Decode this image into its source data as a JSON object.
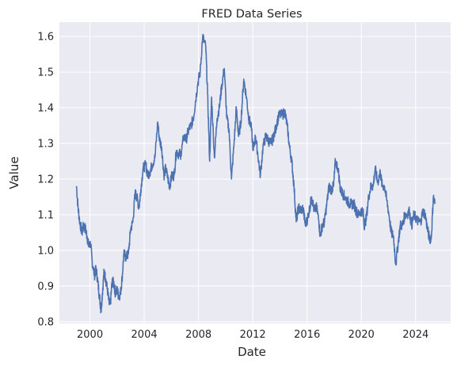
{
  "chart_data": {
    "type": "line",
    "title": "FRED Data Series",
    "xlabel": "Date",
    "ylabel": "Value",
    "grid": true,
    "background": "#EAEAF2",
    "grid_color": "#FFFFFF",
    "line_color": "#4C72B0",
    "xlim": [
      "1997-10-01",
      "2026-08-01"
    ],
    "ylim": [
      0.795,
      1.64
    ],
    "x_ticks": [
      "2000",
      "2004",
      "2008",
      "2012",
      "2016",
      "2020",
      "2024"
    ],
    "y_ticks": [
      "0.8",
      "0.9",
      "1.0",
      "1.1",
      "1.2",
      "1.3",
      "1.4",
      "1.5",
      "1.6"
    ],
    "series": [
      {
        "x": [
          "1999-01-04",
          "1999-02-15",
          "1999-04-01",
          "1999-06-01",
          "1999-07-15",
          "1999-09-01",
          "1999-10-15",
          "1999-12-01",
          "2000-01-15",
          "2000-03-01",
          "2000-05-01",
          "2000-06-15",
          "2000-08-01",
          "2000-09-15",
          "2000-10-26",
          "2000-12-01",
          "2001-01-15",
          "2001-03-01",
          "2001-04-15",
          "2001-06-01",
          "2001-07-06",
          "2001-08-15",
          "2001-10-01",
          "2001-11-15",
          "2002-01-01",
          "2002-02-15",
          "2002-04-01",
          "2002-05-15",
          "2002-07-01",
          "2002-09-01",
          "2002-11-01",
          "2003-01-01",
          "2003-03-01",
          "2003-05-01",
          "2003-06-15",
          "2003-08-15",
          "2003-10-01",
          "2003-12-01",
          "2004-02-15",
          "2004-04-01",
          "2004-06-01",
          "2004-08-01",
          "2004-10-15",
          "2004-12-30",
          "2005-02-15",
          "2005-04-15",
          "2005-06-15",
          "2005-08-01",
          "2005-10-01",
          "2005-11-15",
          "2006-01-15",
          "2006-03-15",
          "2006-05-15",
          "2006-07-15",
          "2006-09-15",
          "2006-12-01",
          "2007-02-01",
          "2007-04-15",
          "2007-06-15",
          "2007-08-15",
          "2007-10-15",
          "2007-12-15",
          "2008-02-15",
          "2008-04-22",
          "2008-07-15",
          "2008-09-01",
          "2008-10-27",
          "2008-12-18",
          "2009-03-04",
          "2009-05-15",
          "2009-07-15",
          "2009-09-15",
          "2009-11-25",
          "2010-02-01",
          "2010-04-01",
          "2010-06-07",
          "2010-08-15",
          "2010-10-15",
          "2010-12-15",
          "2011-02-15",
          "2011-05-03",
          "2011-07-15",
          "2011-09-15",
          "2011-11-15",
          "2012-01-15",
          "2012-03-15",
          "2012-05-15",
          "2012-07-24",
          "2012-10-01",
          "2012-12-15",
          "2013-02-15",
          "2013-04-15",
          "2013-06-15",
          "2013-08-15",
          "2013-10-15",
          "2013-12-15",
          "2014-03-15",
          "2014-05-08",
          "2014-07-15",
          "2014-09-15",
          "2014-11-15",
          "2015-01-15",
          "2015-03-15",
          "2015-05-15",
          "2015-07-15",
          "2015-09-15",
          "2015-11-15",
          "2016-01-15",
          "2016-03-15",
          "2016-05-03",
          "2016-07-15",
          "2016-09-15",
          "2016-11-15",
          "2016-12-20",
          "2017-02-15",
          "2017-04-15",
          "2017-06-15",
          "2017-08-15",
          "2017-10-15",
          "2017-12-15",
          "2018-02-01",
          "2018-04-15",
          "2018-06-15",
          "2018-08-15",
          "2018-10-15",
          "2018-12-15",
          "2019-02-15",
          "2019-04-15",
          "2019-06-15",
          "2019-08-15",
          "2019-10-15",
          "2019-12-15",
          "2020-02-15",
          "2020-03-20",
          "2020-05-15",
          "2020-07-15",
          "2020-09-15",
          "2020-11-15",
          "2021-01-06",
          "2021-03-15",
          "2021-05-25",
          "2021-07-15",
          "2021-09-15",
          "2021-11-15",
          "2022-01-15",
          "2022-03-15",
          "2022-05-15",
          "2022-07-15",
          "2022-09-27",
          "2022-11-15",
          "2023-01-15",
          "2023-03-15",
          "2023-05-01",
          "2023-07-18",
          "2023-09-15",
          "2023-11-15",
          "2024-01-15",
          "2024-03-15",
          "2024-05-15",
          "2024-07-15",
          "2024-09-15",
          "2024-11-15",
          "2025-01-13",
          "2025-03-01",
          "2025-04-21",
          "2025-06-01"
        ],
        "y": [
          1.18,
          1.12,
          1.08,
          1.05,
          1.07,
          1.06,
          1.04,
          1.01,
          1.02,
          0.97,
          0.93,
          0.95,
          0.91,
          0.87,
          0.83,
          0.88,
          0.94,
          0.92,
          0.89,
          0.85,
          0.85,
          0.91,
          0.91,
          0.88,
          0.89,
          0.87,
          0.88,
          0.92,
          0.99,
          0.98,
          0.99,
          1.06,
          1.08,
          1.16,
          1.15,
          1.12,
          1.17,
          1.23,
          1.24,
          1.21,
          1.22,
          1.24,
          1.26,
          1.36,
          1.31,
          1.29,
          1.21,
          1.23,
          1.2,
          1.18,
          1.21,
          1.21,
          1.28,
          1.27,
          1.27,
          1.32,
          1.31,
          1.34,
          1.35,
          1.37,
          1.42,
          1.47,
          1.5,
          1.6,
          1.57,
          1.44,
          1.25,
          1.43,
          1.26,
          1.37,
          1.4,
          1.46,
          1.51,
          1.37,
          1.34,
          1.2,
          1.3,
          1.4,
          1.32,
          1.36,
          1.48,
          1.43,
          1.37,
          1.35,
          1.28,
          1.32,
          1.27,
          1.21,
          1.29,
          1.32,
          1.31,
          1.3,
          1.31,
          1.33,
          1.36,
          1.38,
          1.38,
          1.39,
          1.35,
          1.29,
          1.25,
          1.18,
          1.08,
          1.12,
          1.11,
          1.12,
          1.07,
          1.09,
          1.12,
          1.15,
          1.11,
          1.12,
          1.08,
          1.04,
          1.07,
          1.08,
          1.13,
          1.18,
          1.17,
          1.18,
          1.25,
          1.23,
          1.17,
          1.16,
          1.15,
          1.14,
          1.13,
          1.13,
          1.13,
          1.11,
          1.1,
          1.11,
          1.11,
          1.07,
          1.09,
          1.15,
          1.18,
          1.18,
          1.23,
          1.19,
          1.22,
          1.18,
          1.18,
          1.14,
          1.1,
          1.05,
          1.04,
          0.96,
          1.03,
          1.07,
          1.07,
          1.1,
          1.1,
          1.11,
          1.07,
          1.1,
          1.09,
          1.08,
          1.08,
          1.11,
          1.1,
          1.06,
          1.03,
          1.04,
          1.15,
          1.13
        ]
      }
    ]
  }
}
